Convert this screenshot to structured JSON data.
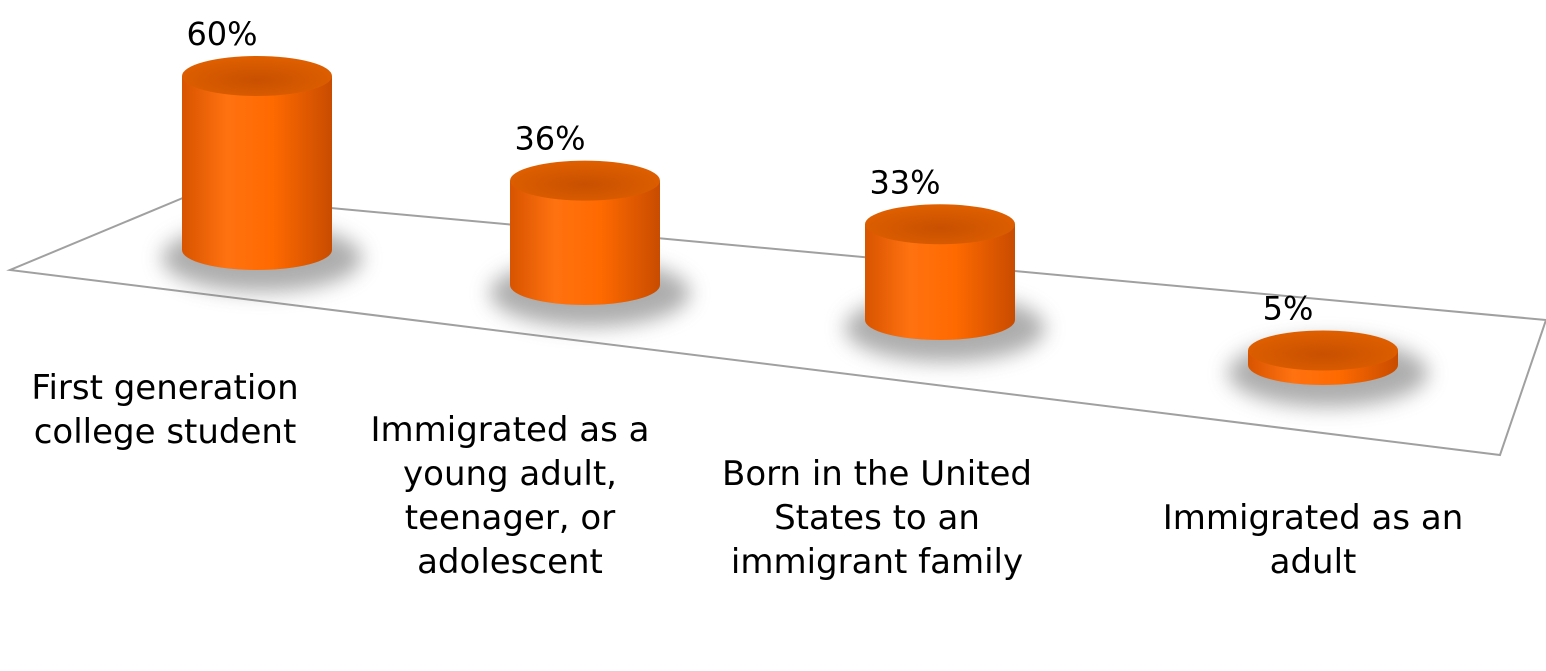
{
  "chart_data": {
    "type": "bar3d",
    "categories": [
      "First generation college student",
      "Immigrated as a young adult, teenager, or adolescent",
      "Born in the United States to an immigrant family",
      "Immigrated as an adult"
    ],
    "values": [
      60,
      36,
      33,
      5
    ],
    "value_labels": [
      "60%",
      "36%",
      "33%",
      "5%"
    ],
    "color": "#ff6a00"
  }
}
